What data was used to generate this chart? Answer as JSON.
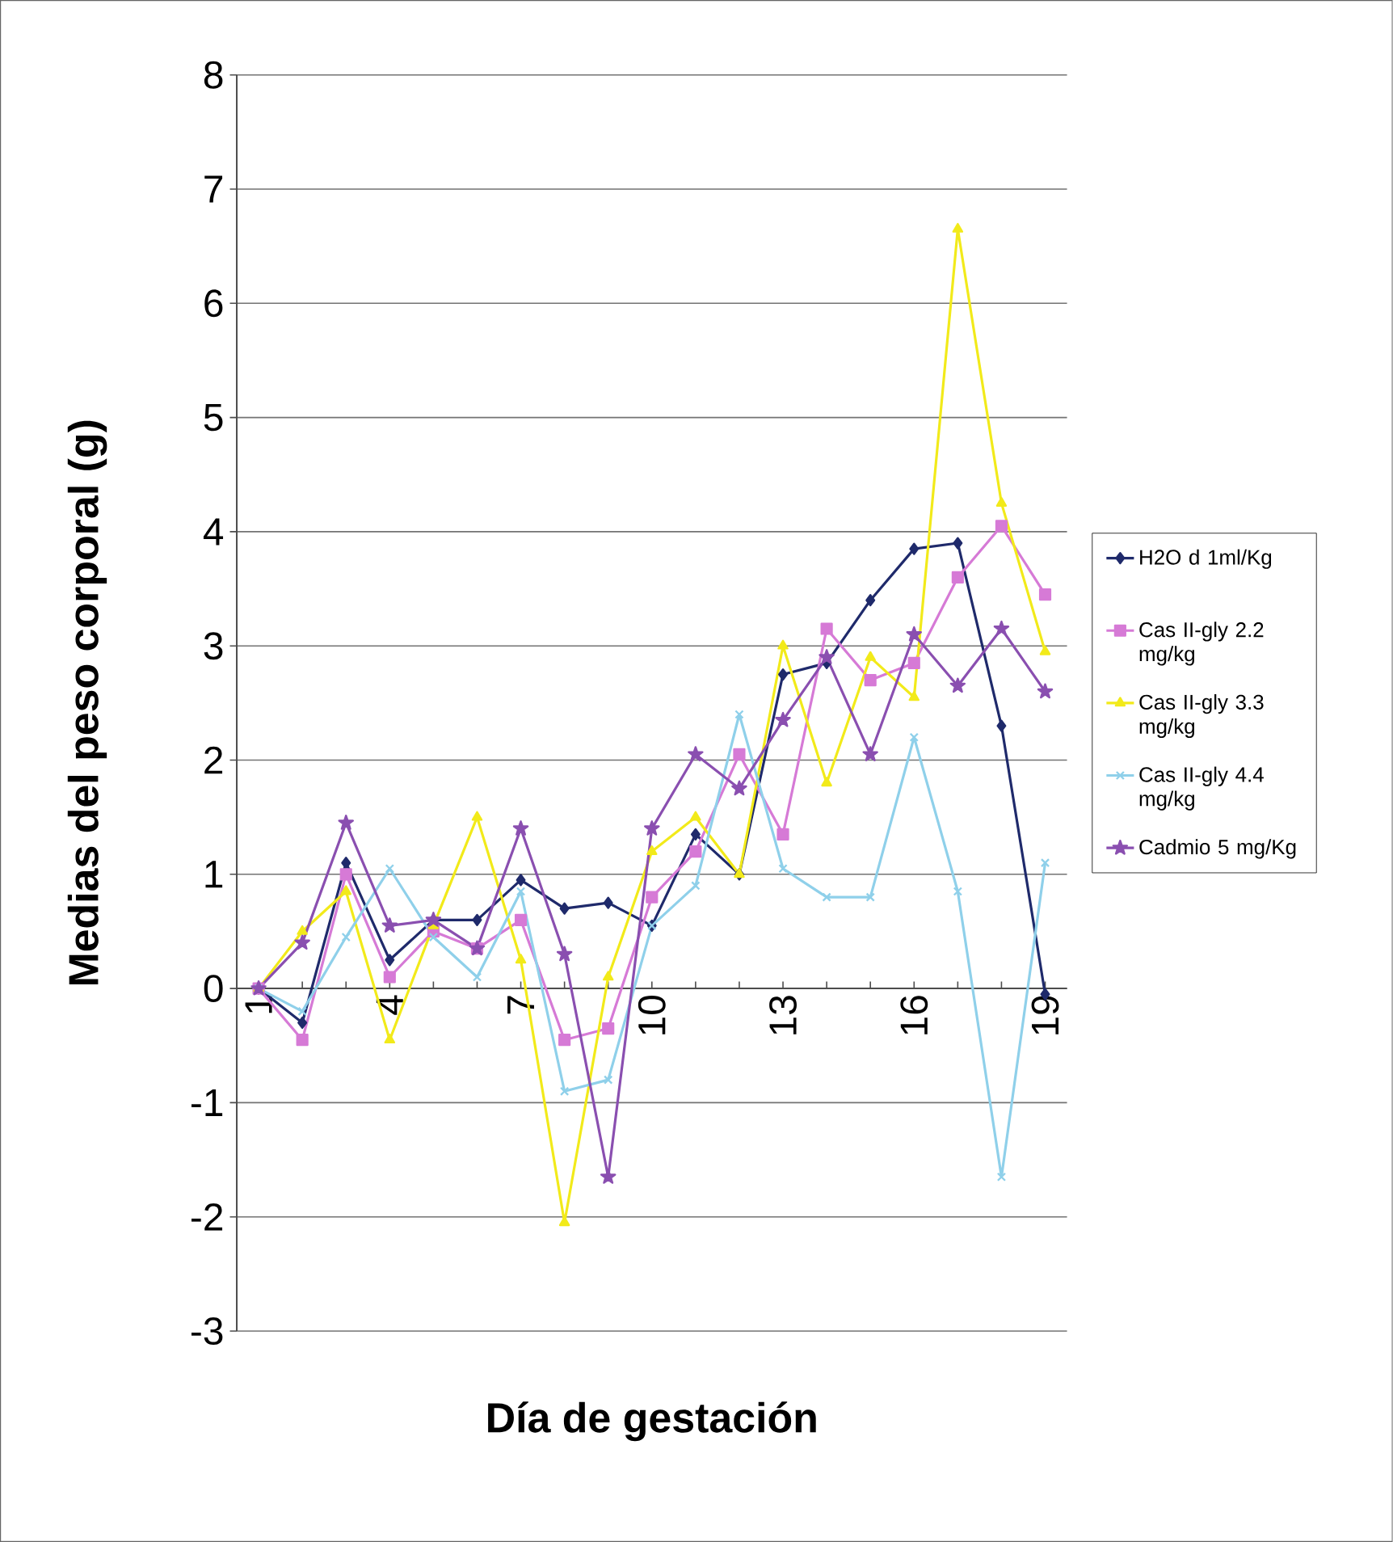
{
  "chart_data": {
    "type": "line",
    "xlabel": "Día de gestación",
    "ylabel": "Medias del peso corporal (g)",
    "categories": [
      "1",
      null,
      null,
      "4",
      null,
      null,
      "7",
      null,
      null,
      "10",
      null,
      null,
      "13",
      null,
      null,
      "16",
      null,
      null,
      "19"
    ],
    "ylim": [
      -3,
      8
    ],
    "yticks": [
      -3,
      -2,
      -1,
      0,
      1,
      2,
      3,
      4,
      5,
      6,
      7,
      8
    ],
    "grid": "y",
    "legend": "right",
    "series": [
      {
        "name": "H2O d 1ml/Kg",
        "color": "#1f2a6b",
        "marker": "diamond",
        "values": [
          0,
          -0.3,
          1.1,
          0.25,
          0.6,
          0.6,
          0.95,
          0.7,
          0.75,
          0.55,
          1.35,
          1.0,
          2.75,
          2.85,
          3.4,
          3.85,
          3.9,
          2.3,
          -0.05
        ]
      },
      {
        "name": "Cas II-gly 2.2 mg/kg",
        "color": "#d67ad6",
        "marker": "square",
        "values": [
          0,
          -0.45,
          1.0,
          0.1,
          0.5,
          0.35,
          0.6,
          -0.45,
          -0.35,
          0.8,
          1.2,
          2.05,
          1.35,
          3.15,
          2.7,
          2.85,
          3.6,
          4.05,
          3.45
        ]
      },
      {
        "name": "Cas II-gly 3.3 mg/kg",
        "color": "#f2ea1a",
        "marker": "triangle",
        "values": [
          0,
          0.5,
          0.85,
          -0.45,
          0.55,
          1.5,
          0.25,
          -2.05,
          0.1,
          1.2,
          1.5,
          1.0,
          3.0,
          1.8,
          2.9,
          2.55,
          6.65,
          4.25,
          2.95
        ]
      },
      {
        "name": "Cas II-gly 4.4 mg/kg",
        "color": "#8fd0ea",
        "marker": "cross",
        "values": [
          0,
          -0.2,
          0.45,
          1.05,
          0.45,
          0.1,
          0.85,
          -0.9,
          -0.8,
          0.55,
          0.9,
          2.4,
          1.05,
          0.8,
          0.8,
          2.2,
          0.85,
          -1.65,
          1.1
        ]
      },
      {
        "name": "Cadmio 5 mg/Kg",
        "color": "#8a4fb0",
        "marker": "star",
        "values": [
          0,
          0.4,
          1.45,
          0.55,
          0.6,
          0.35,
          1.4,
          0.3,
          -1.65,
          1.4,
          2.05,
          1.75,
          2.35,
          2.9,
          2.05,
          3.1,
          2.65,
          3.15,
          2.6
        ]
      }
    ]
  }
}
